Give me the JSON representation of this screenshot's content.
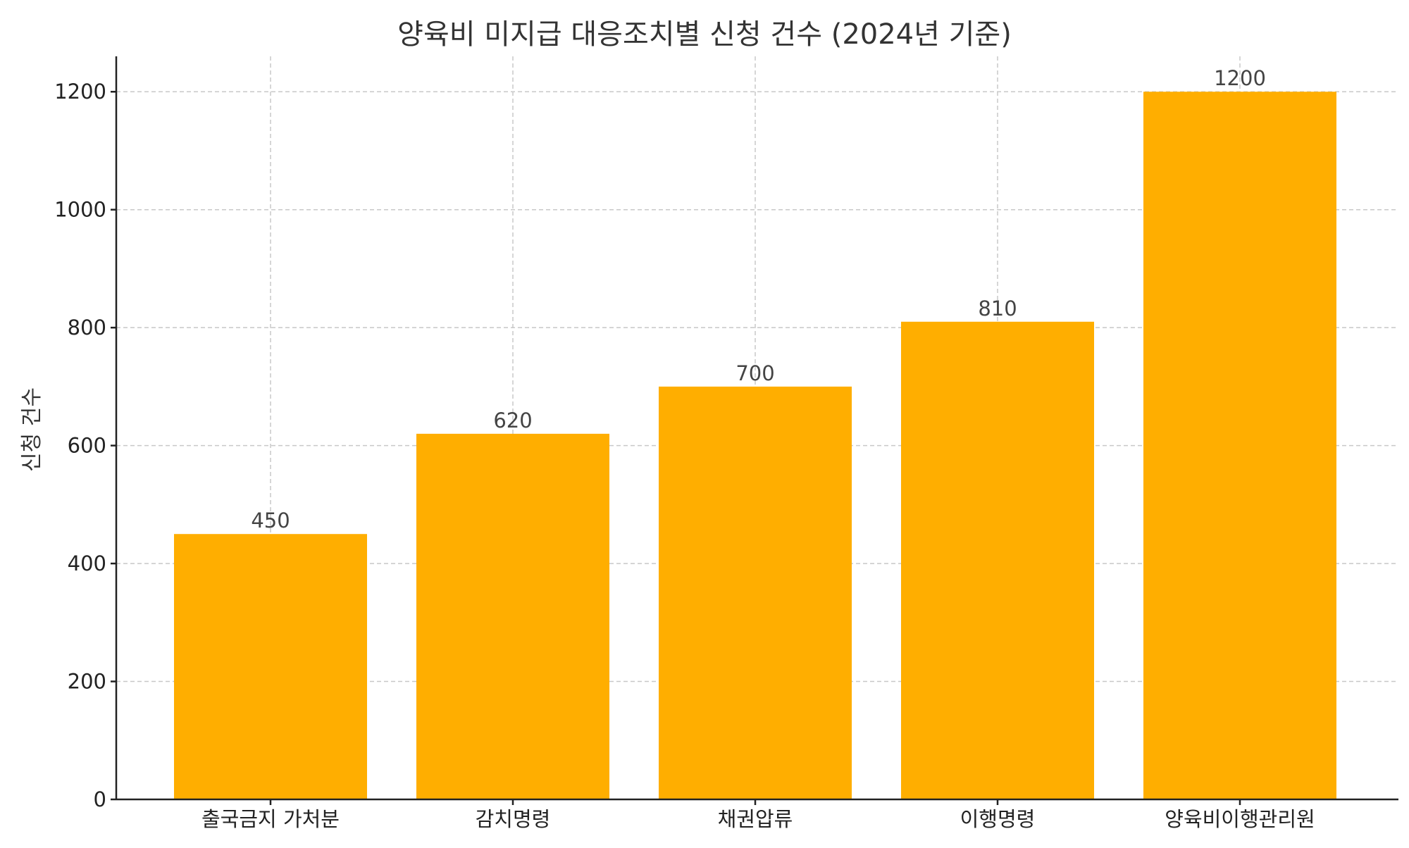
{
  "chart_data": {
    "type": "bar",
    "title": "양육비 미지급 대응조치별 신청 건수 (2024년 기준)",
    "xlabel": "",
    "ylabel": "신청 건수",
    "categories": [
      "출국금지 가처분",
      "감치명령",
      "채권압류",
      "이행명령",
      "양육비이행관리원"
    ],
    "values": [
      450,
      620,
      700,
      810,
      1200
    ],
    "ylim": [
      0,
      1260
    ],
    "yticks": [
      0,
      200,
      400,
      600,
      800,
      1000,
      1200
    ],
    "bar_color": "#FFAE00",
    "grid": true,
    "legend": "none"
  }
}
